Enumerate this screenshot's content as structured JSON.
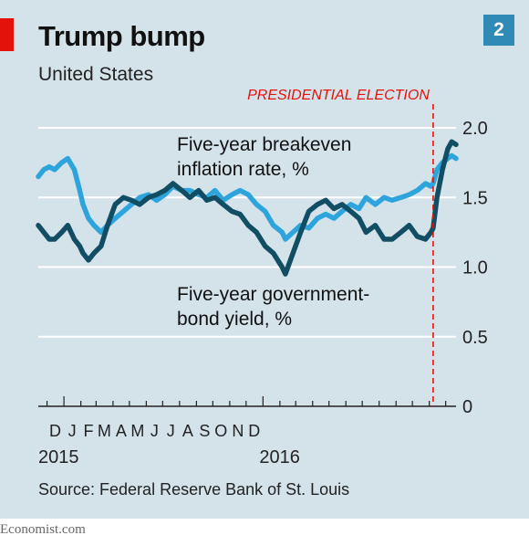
{
  "header": {
    "title": "Trump bump",
    "subtitle": "United States",
    "chart_number": "2"
  },
  "footer": {
    "source": "Source: Federal Reserve Bank of St. Louis",
    "brand": "Economist.com"
  },
  "colors": {
    "background": "#d4e2ea",
    "accent_red": "#e3120b",
    "breakeven": "#124e63",
    "yield": "#2ea4dc",
    "badge": "#2f8ab6"
  },
  "chart_data": {
    "type": "line",
    "title": "Trump bump",
    "subtitle": "United States",
    "x_tick_labels": [
      "D",
      "J",
      "F",
      "M",
      "A",
      "M",
      "J",
      "J",
      "A",
      "S",
      "O",
      "N",
      "D"
    ],
    "x_year_labels": [
      "2015",
      "2016"
    ],
    "x_range": [
      "2014-11-15",
      "2016-12-20"
    ],
    "ylim": [
      0,
      2.0
    ],
    "y_ticks": [
      0,
      0.5,
      1.0,
      1.5,
      2.0
    ],
    "y_tick_labels": [
      "0",
      "0.5",
      "1.0",
      "1.5",
      "2.0"
    ],
    "y_axis_side": "right",
    "grid": true,
    "annotation": {
      "label": "PRESIDENTIAL ELECTION",
      "date": "2016-11-08"
    },
    "series": [
      {
        "name": "Five-year breakeven inflation rate, %",
        "x": [
          "2014-11-15",
          "2014-11-25",
          "2014-12-05",
          "2014-12-15",
          "2014-12-28",
          "2015-01-08",
          "2015-01-20",
          "2015-01-30",
          "2015-02-05",
          "2015-02-15",
          "2015-02-25",
          "2015-03-10",
          "2015-03-22",
          "2015-04-05",
          "2015-04-20",
          "2015-05-05",
          "2015-05-20",
          "2015-06-05",
          "2015-06-20",
          "2015-07-05",
          "2015-07-20",
          "2015-08-05",
          "2015-08-20",
          "2015-09-05",
          "2015-09-20",
          "2015-10-05",
          "2015-10-20",
          "2015-11-05",
          "2015-11-20",
          "2015-12-05",
          "2015-12-20",
          "2016-01-05",
          "2016-01-20",
          "2016-02-05",
          "2016-02-11",
          "2016-02-25",
          "2016-03-10",
          "2016-03-25",
          "2016-04-10",
          "2016-04-25",
          "2016-05-10",
          "2016-05-25",
          "2016-06-10",
          "2016-06-25",
          "2016-07-08",
          "2016-07-25",
          "2016-08-10",
          "2016-08-25",
          "2016-09-10",
          "2016-09-25",
          "2016-10-10",
          "2016-10-25",
          "2016-11-04",
          "2016-11-08",
          "2016-11-15",
          "2016-11-25",
          "2016-12-05",
          "2016-12-12",
          "2016-12-20"
        ],
        "y": [
          1.3,
          1.25,
          1.2,
          1.2,
          1.25,
          1.3,
          1.2,
          1.15,
          1.1,
          1.05,
          1.1,
          1.15,
          1.3,
          1.45,
          1.5,
          1.48,
          1.45,
          1.5,
          1.52,
          1.55,
          1.6,
          1.55,
          1.5,
          1.55,
          1.48,
          1.5,
          1.45,
          1.4,
          1.38,
          1.3,
          1.25,
          1.15,
          1.1,
          1.0,
          0.95,
          1.1,
          1.25,
          1.4,
          1.45,
          1.48,
          1.42,
          1.45,
          1.4,
          1.35,
          1.25,
          1.3,
          1.2,
          1.2,
          1.25,
          1.3,
          1.22,
          1.2,
          1.25,
          1.28,
          1.5,
          1.7,
          1.85,
          1.9,
          1.88
        ]
      },
      {
        "name": "Five-year government-bond yield, %",
        "x": [
          "2014-11-15",
          "2014-11-25",
          "2014-12-05",
          "2014-12-15",
          "2014-12-28",
          "2015-01-08",
          "2015-01-20",
          "2015-01-30",
          "2015-02-05",
          "2015-02-15",
          "2015-02-25",
          "2015-03-10",
          "2015-03-22",
          "2015-04-05",
          "2015-04-20",
          "2015-05-05",
          "2015-05-20",
          "2015-06-05",
          "2015-06-20",
          "2015-07-05",
          "2015-07-20",
          "2015-08-05",
          "2015-08-20",
          "2015-09-05",
          "2015-09-20",
          "2015-10-05",
          "2015-10-20",
          "2015-11-05",
          "2015-11-20",
          "2015-12-05",
          "2015-12-20",
          "2016-01-05",
          "2016-01-20",
          "2016-02-05",
          "2016-02-11",
          "2016-02-25",
          "2016-03-10",
          "2016-03-25",
          "2016-04-10",
          "2016-04-25",
          "2016-05-10",
          "2016-05-25",
          "2016-06-10",
          "2016-06-25",
          "2016-07-08",
          "2016-07-25",
          "2016-08-10",
          "2016-08-25",
          "2016-09-10",
          "2016-09-25",
          "2016-10-10",
          "2016-10-25",
          "2016-11-04",
          "2016-11-08",
          "2016-11-15",
          "2016-11-25",
          "2016-12-05",
          "2016-12-12",
          "2016-12-20"
        ],
        "y": [
          1.65,
          1.7,
          1.72,
          1.7,
          1.75,
          1.78,
          1.7,
          1.55,
          1.45,
          1.35,
          1.3,
          1.25,
          1.3,
          1.35,
          1.4,
          1.45,
          1.5,
          1.52,
          1.48,
          1.52,
          1.58,
          1.55,
          1.55,
          1.52,
          1.5,
          1.55,
          1.48,
          1.52,
          1.55,
          1.52,
          1.45,
          1.4,
          1.3,
          1.25,
          1.2,
          1.25,
          1.3,
          1.28,
          1.35,
          1.38,
          1.35,
          1.4,
          1.45,
          1.42,
          1.5,
          1.45,
          1.5,
          1.48,
          1.5,
          1.52,
          1.55,
          1.6,
          1.58,
          1.6,
          1.7,
          1.75,
          1.78,
          1.8,
          1.78
        ]
      }
    ],
    "series_labels": [
      {
        "series": 0,
        "lines": [
          "Five-year breakeven",
          "inflation rate, %"
        ]
      },
      {
        "series": 1,
        "lines": [
          "Five-year government-",
          "bond yield, %"
        ]
      }
    ]
  }
}
